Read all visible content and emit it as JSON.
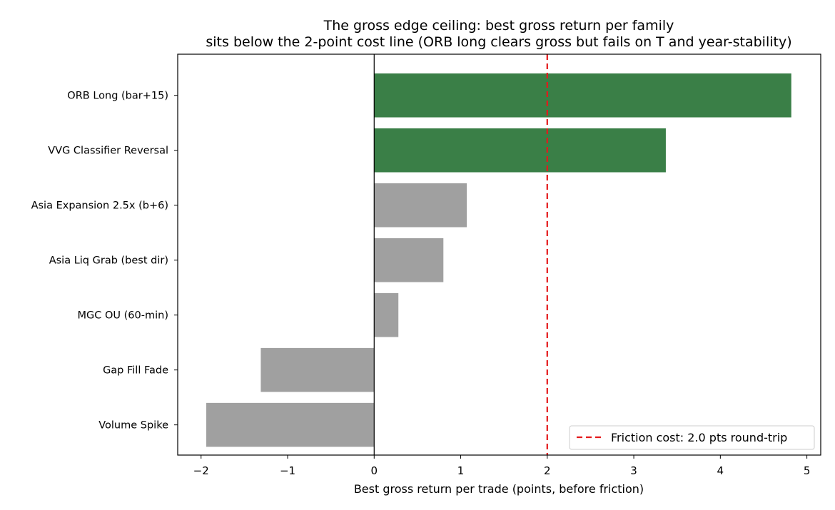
{
  "chart_data": {
    "type": "bar",
    "orientation": "horizontal",
    "title_lines": [
      "The gross edge ceiling: best gross return per family",
      "sits below the 2-point cost line (ORB long clears gross but fails on T and year-stability)"
    ],
    "xlabel": "Best gross return per trade (points, before friction)",
    "ylabel": "",
    "xlim": [
      -2.27,
      5.16
    ],
    "xticks": [
      -2,
      -1,
      0,
      1,
      2,
      3,
      4,
      5
    ],
    "xtick_labels": [
      "−2",
      "−1",
      "0",
      "1",
      "2",
      "3",
      "4",
      "5"
    ],
    "categories": [
      "ORB Long (bar+15)",
      "VVG Classifier Reversal",
      "Asia Expansion 2.5x (b+6)",
      "Asia Liq Grab (best dir)",
      "MGC OU (60-min)",
      "Gap Fill Fade",
      "Volume Spike"
    ],
    "values": [
      4.82,
      3.37,
      1.07,
      0.8,
      0.28,
      -1.31,
      -1.94
    ],
    "bar_colors": [
      "#3a7f47",
      "#3a7f47",
      "#a0a0a0",
      "#a0a0a0",
      "#a0a0a0",
      "#a0a0a0",
      "#a0a0a0"
    ],
    "reference_line": {
      "x": 2.0,
      "color": "#e41a1c",
      "style": "dashed",
      "label": "Friction cost: 2.0 pts round-trip"
    },
    "zero_line": true,
    "grid": false,
    "legend_position": "lower-right"
  }
}
